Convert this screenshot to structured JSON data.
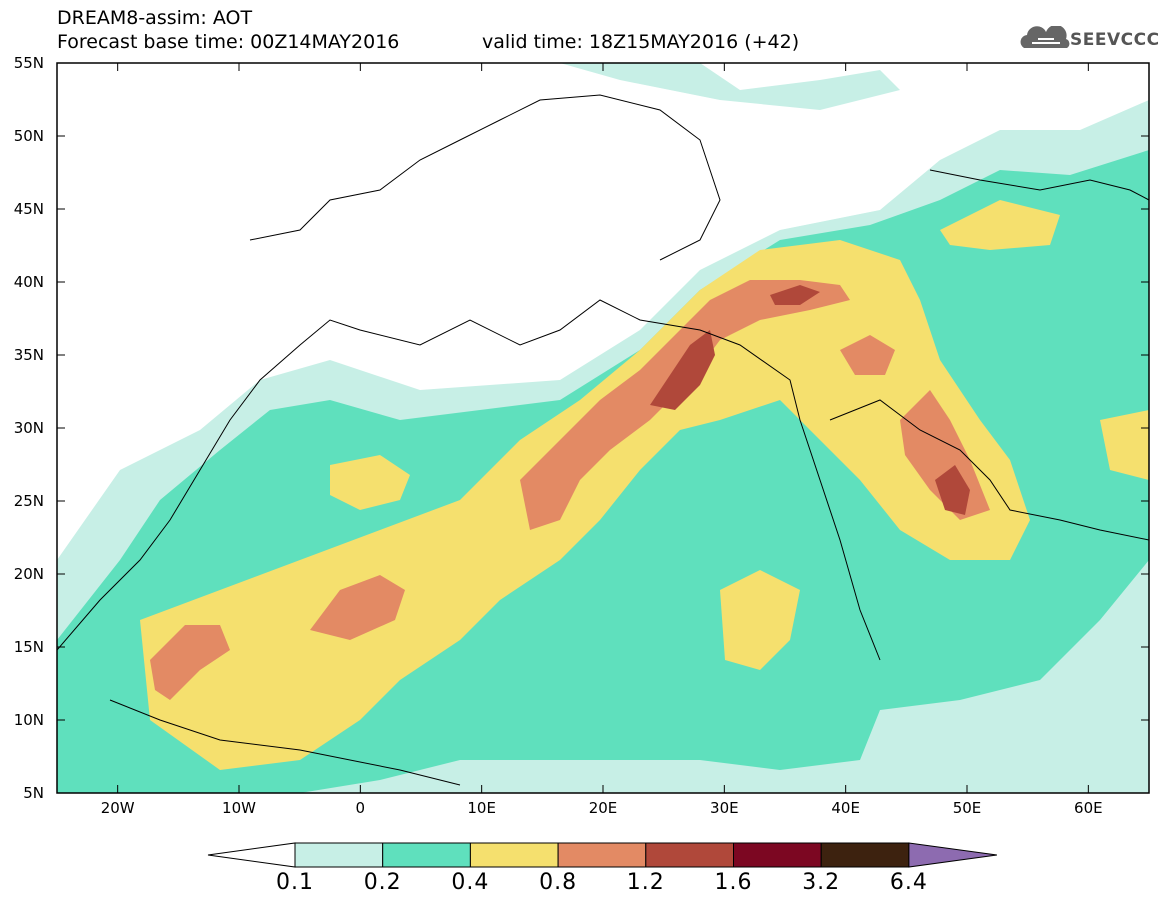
{
  "header": {
    "title_line1": "DREAM8-assim: AOT",
    "title_line2": "Forecast base time: 00Z14MAY2016",
    "valid_time": "valid time: 18Z15MAY2016 (+42)",
    "logo_text": "SEEVCCC"
  },
  "axes": {
    "lat_labels": [
      "55N",
      "50N",
      "45N",
      "40N",
      "35N",
      "30N",
      "25N",
      "20N",
      "15N",
      "10N",
      "5N"
    ],
    "lon_labels": [
      "20W",
      "10W",
      "0",
      "10E",
      "20E",
      "30E",
      "40E",
      "50E",
      "60E"
    ]
  },
  "colorbar": {
    "labels": [
      "0.1",
      "0.2",
      "0.4",
      "0.8",
      "1.2",
      "1.6",
      "3.2",
      "6.4"
    ],
    "colors": [
      "#ffffff",
      "#c7efe6",
      "#5fe0bd",
      "#f5e06e",
      "#e38a64",
      "#b0483a",
      "#7c0722",
      "#3d220f",
      "#8d6bb0"
    ]
  },
  "chart_data": {
    "type": "heatmap",
    "variable": "AOT",
    "lat_range": [
      5,
      55
    ],
    "lon_range": [
      -25,
      65
    ],
    "levels": [
      0.1,
      0.2,
      0.4,
      0.8,
      1.2,
      1.6,
      3.2,
      6.4
    ]
  }
}
